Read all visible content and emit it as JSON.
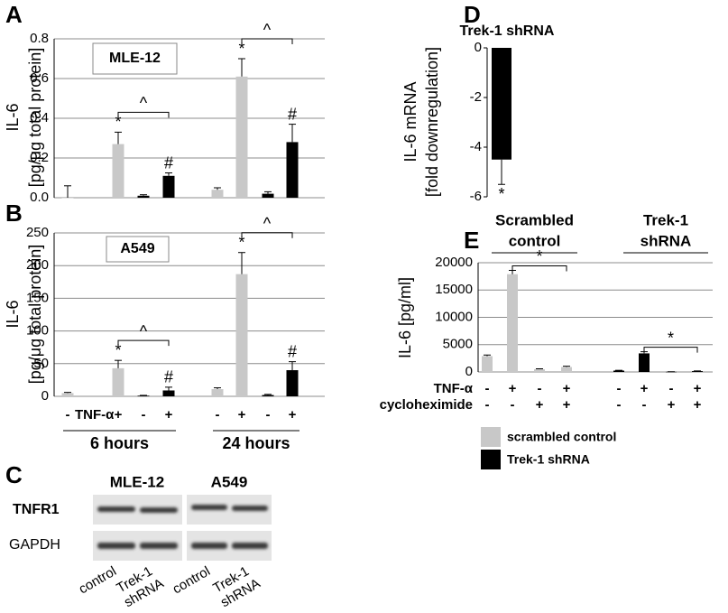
{
  "chart_data": [
    {
      "type": "bar",
      "panel_label": "A",
      "box_label": "MLE-12",
      "ylabel": [
        "IL-6",
        "[pg/μg total protein]"
      ],
      "values": [
        0,
        0.27,
        0.01,
        0.11,
        0.04,
        0.61,
        0.02,
        0.28
      ],
      "errors": [
        0.06,
        0.06,
        0.005,
        0.015,
        0.01,
        0.09,
        0.01,
        0.09
      ],
      "colors": [
        "#c8c8c8",
        "#c8c8c8",
        "#000000",
        "#000000",
        "#c8c8c8",
        "#c8c8c8",
        "#000000",
        "#000000"
      ],
      "annotations": [
        null,
        "*",
        null,
        "#",
        null,
        "*",
        null,
        "#"
      ],
      "brackets": [
        {
          "text": "^",
          "from": 1,
          "to": 3
        },
        {
          "text": "^",
          "from": 5,
          "to": 7
        }
      ],
      "ylim": [
        0,
        0.8
      ],
      "yticks": [
        {
          "value": 0,
          "label": "0.0"
        },
        0.2,
        0.4,
        0.6,
        0.8
      ],
      "grid": true
    },
    {
      "type": "bar",
      "panel_label": "B",
      "box_label": "A549",
      "ylabel": [
        "IL-6",
        "[pg/μg total protein]"
      ],
      "categories": [
        "-",
        "+",
        "-",
        "+",
        "-",
        "+",
        "-",
        "+"
      ],
      "x_row_label": "TNF-α",
      "groups": [
        "6 hours",
        "24 hours"
      ],
      "values": [
        5,
        43,
        1,
        9,
        11,
        187,
        2,
        40
      ],
      "errors": [
        1,
        12,
        0.5,
        5,
        2,
        33,
        1,
        13
      ],
      "colors": [
        "#c8c8c8",
        "#c8c8c8",
        "#000000",
        "#000000",
        "#c8c8c8",
        "#c8c8c8",
        "#000000",
        "#000000"
      ],
      "annotations": [
        null,
        "*",
        null,
        "#",
        null,
        "*",
        null,
        "#"
      ],
      "brackets": [
        {
          "text": "^",
          "from": 1,
          "to": 3
        },
        {
          "text": "^",
          "from": 5,
          "to": 7
        }
      ],
      "ylim": [
        0,
        250
      ],
      "yticks": [
        0,
        50,
        100,
        150,
        200,
        250
      ],
      "grid": true
    },
    {
      "type": "bar",
      "panel_label": "D",
      "title": "Trek-1 shRNA",
      "ylabel": [
        "IL-6 mRNA",
        "[fold downregulation]"
      ],
      "values": [
        -4.5
      ],
      "errors": [
        1.0
      ],
      "colors": [
        "#000000"
      ],
      "annotations": [
        "*"
      ],
      "ylim": [
        -6,
        0
      ],
      "yticks": [
        -6,
        -4,
        -2,
        0
      ],
      "grid": false
    },
    {
      "type": "bar",
      "panel_label": "E",
      "ylabel": [
        "IL-6 [pg/ml]"
      ],
      "groups": [
        [
          "Scrambled",
          "control"
        ],
        [
          "Trek-1",
          "shRNA"
        ]
      ],
      "rows": [
        {
          "label": "TNF-α",
          "values": [
            "-",
            "+",
            "-",
            "+",
            "-",
            "+",
            "-",
            "+"
          ]
        },
        {
          "label": "cycloheximide",
          "values": [
            "-",
            "-",
            "+",
            "+",
            "-",
            "-",
            "+",
            "+"
          ]
        }
      ],
      "series": [
        {
          "name": "scrambled control",
          "color": "#c8c8c8",
          "values": [
            2900,
            17900,
            500,
            900
          ],
          "errors": [
            200,
            700,
            80,
            150
          ]
        },
        {
          "name": "Trek-1 shRNA",
          "color": "#000000",
          "values": [
            250,
            3400,
            30,
            150
          ],
          "errors": [
            50,
            300,
            10,
            40
          ]
        }
      ],
      "brackets": [
        {
          "text": "*",
          "from": 1,
          "to": 3
        },
        {
          "text": "*",
          "from": 5,
          "to": 7
        }
      ],
      "ylim": [
        0,
        20000
      ],
      "yticks": [
        0,
        5000,
        10000,
        15000,
        20000
      ],
      "grid": true
    }
  ],
  "blot": {
    "panel_label": "C",
    "cell_lines": [
      "MLE-12",
      "A549"
    ],
    "proteins": [
      "TNFR1",
      "GAPDH"
    ],
    "lanes": [
      [
        "control"
      ],
      [
        "Trek-1",
        "shRNA"
      ],
      [
        "control"
      ],
      [
        "Trek-1",
        "shRNA"
      ]
    ]
  }
}
